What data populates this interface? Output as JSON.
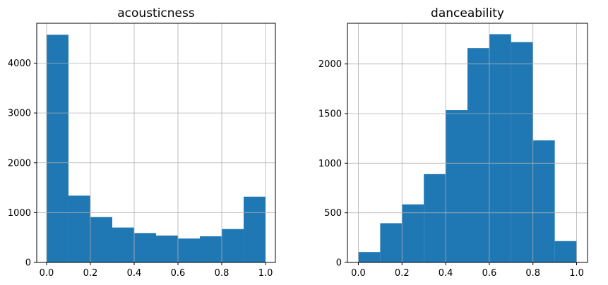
{
  "colors": {
    "bar": "#1f77b4",
    "grid": "#b0b0b0"
  },
  "chart_data": [
    {
      "type": "bar",
      "title": "acousticness",
      "bin_edges": [
        0.0,
        0.1,
        0.2,
        0.3,
        0.4,
        0.5,
        0.6,
        0.7,
        0.8,
        0.9,
        1.0
      ],
      "values": [
        4570,
        1340,
        910,
        700,
        590,
        540,
        480,
        525,
        670,
        1320
      ],
      "xlim": [
        -0.045,
        1.045
      ],
      "ylim": [
        0,
        4800
      ],
      "xticks": [
        0.0,
        0.2,
        0.4,
        0.6,
        0.8,
        1.0
      ],
      "xtick_labels": [
        "0.0",
        "0.2",
        "0.4",
        "0.6",
        "0.8",
        "1.0"
      ],
      "yticks": [
        0,
        1000,
        2000,
        3000,
        4000
      ],
      "ytick_labels": [
        "0",
        "1000",
        "2000",
        "3000",
        "4000"
      ],
      "grid": true
    },
    {
      "type": "bar",
      "title": "danceability",
      "bin_edges": [
        0.0,
        0.1,
        0.2,
        0.3,
        0.4,
        0.5,
        0.6,
        0.7,
        0.8,
        0.9,
        1.0
      ],
      "values": [
        105,
        395,
        585,
        890,
        1535,
        2160,
        2300,
        2220,
        1230,
        215
      ],
      "xlim": [
        -0.05,
        1.05
      ],
      "ylim": [
        0,
        2410
      ],
      "xticks": [
        0.0,
        0.2,
        0.4,
        0.6,
        0.8,
        1.0
      ],
      "xtick_labels": [
        "0.0",
        "0.2",
        "0.4",
        "0.6",
        "0.8",
        "1.0"
      ],
      "yticks": [
        0,
        500,
        1000,
        1500,
        2000
      ],
      "ytick_labels": [
        "0",
        "500",
        "1000",
        "1500",
        "2000"
      ],
      "grid": true
    }
  ]
}
